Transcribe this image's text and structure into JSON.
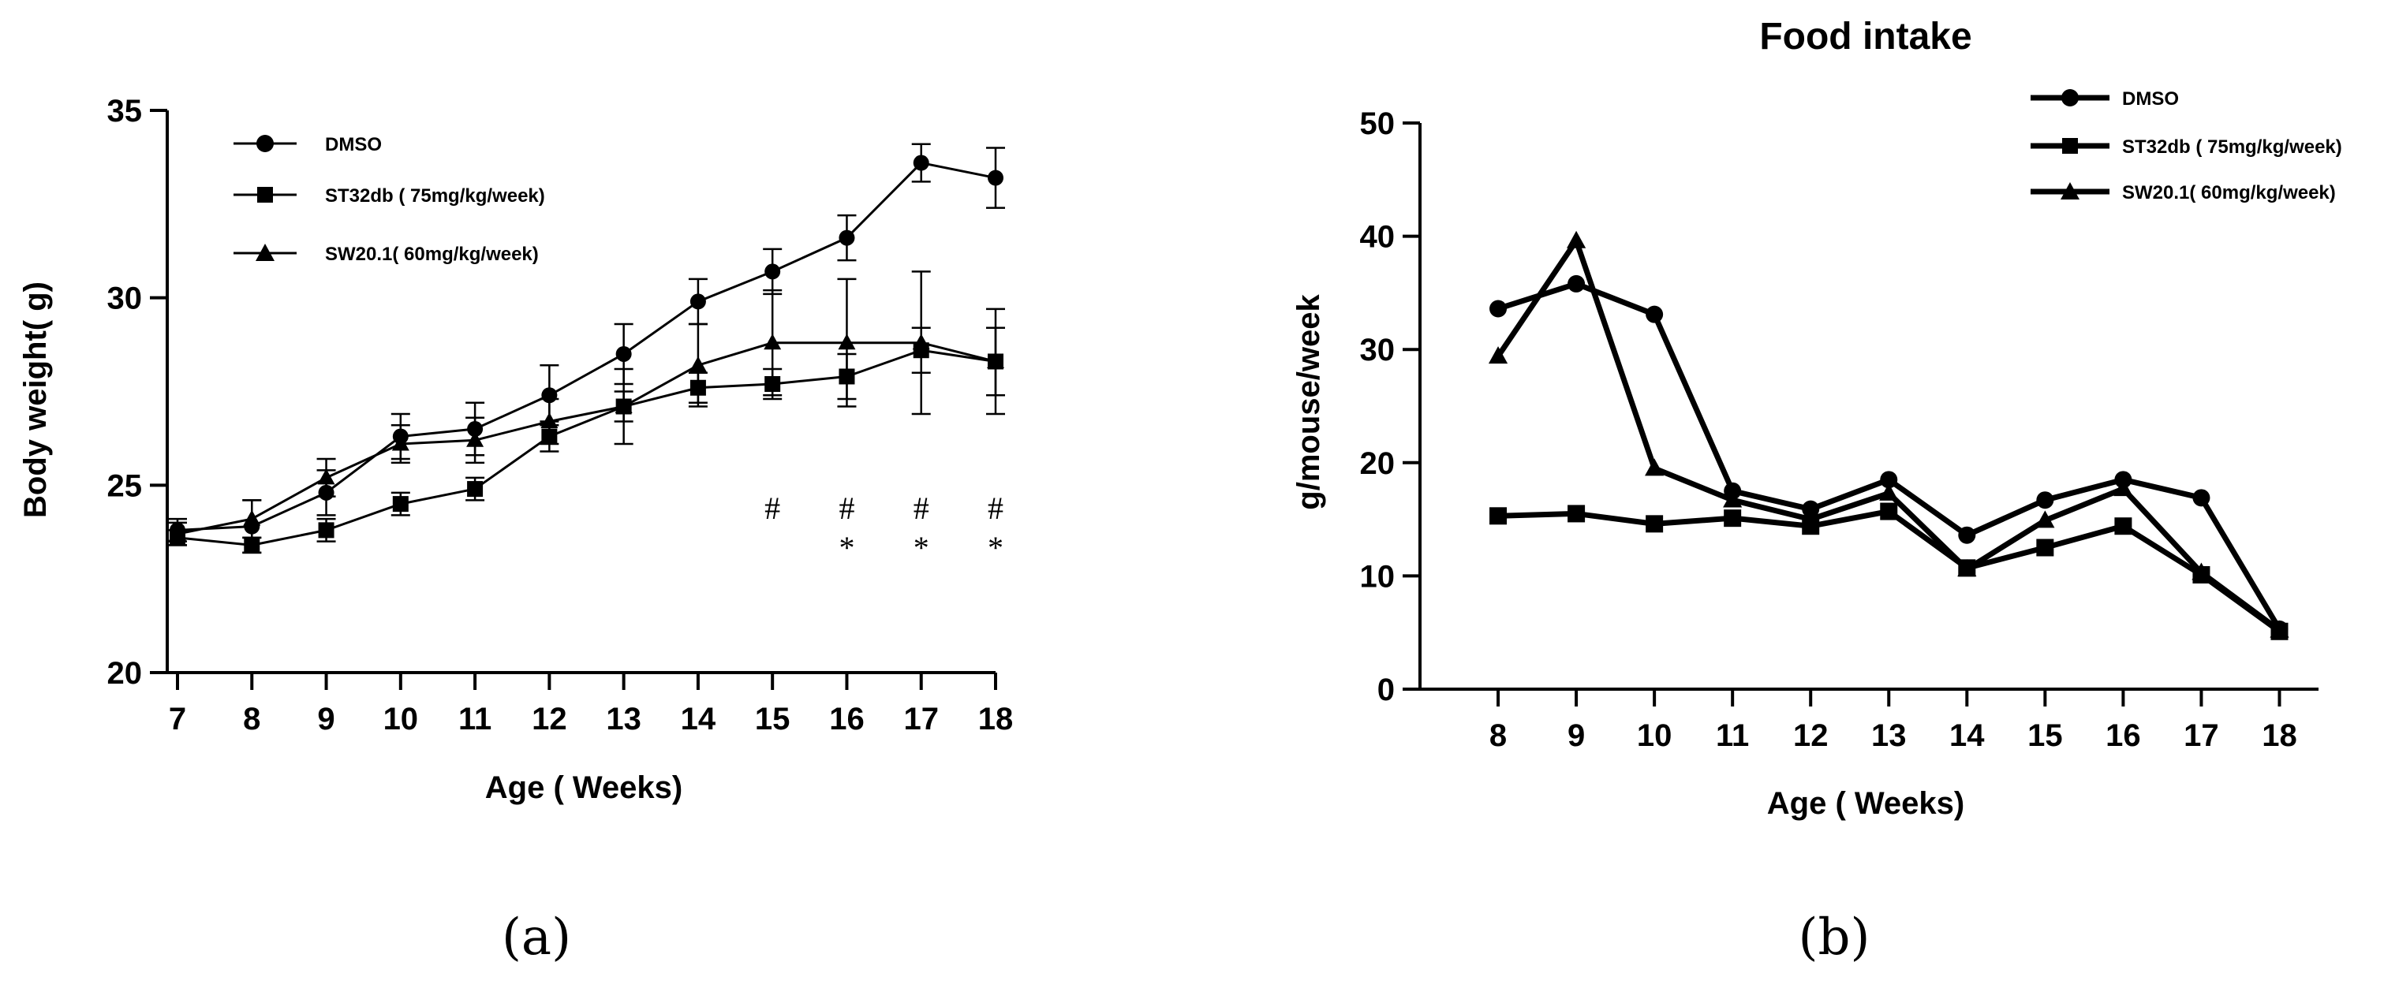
{
  "chart_data": [
    {
      "type": "line",
      "panel_label": "(a)",
      "title": "",
      "xlabel": "Age ( Weeks)",
      "ylabel": "Body weight( g)",
      "x": [
        7,
        8,
        9,
        10,
        11,
        12,
        13,
        14,
        15,
        16,
        17,
        18
      ],
      "xlim": [
        7,
        18
      ],
      "ylim": [
        20,
        35
      ],
      "xticks": [
        "7",
        "8",
        "9",
        "10",
        "11",
        "12",
        "13",
        "14",
        "15",
        "16",
        "17",
        "18"
      ],
      "yticks": [
        20,
        25,
        30,
        35
      ],
      "legend_position": "top-left",
      "series": [
        {
          "name": "DMSO",
          "marker": "circle",
          "values": [
            23.8,
            23.9,
            24.8,
            26.3,
            26.5,
            27.4,
            28.5,
            29.9,
            30.7,
            31.6,
            33.6,
            33.2
          ],
          "errors": [
            0.3,
            0.7,
            0.6,
            0.6,
            0.7,
            0.8,
            0.8,
            0.6,
            0.6,
            0.6,
            0.5,
            0.8
          ]
        },
        {
          "name": "ST32db ( 75mg/kg/week)",
          "marker": "square",
          "values": [
            23.6,
            23.4,
            23.8,
            24.5,
            24.9,
            26.3,
            27.1,
            27.6,
            27.7,
            27.9,
            28.6,
            28.3
          ],
          "errors": [
            0.2,
            0.2,
            0.3,
            0.3,
            0.3,
            0.4,
            0.4,
            0.4,
            0.4,
            0.6,
            0.6,
            0.9
          ]
        },
        {
          "name": "SW20.1( 60mg/kg/week)",
          "marker": "triangle",
          "values": [
            23.7,
            24.1,
            25.2,
            26.1,
            26.2,
            26.7,
            27.1,
            28.2,
            28.8,
            28.8,
            28.8,
            28.3
          ],
          "errors": [
            0.3,
            0.5,
            0.5,
            0.5,
            0.6,
            0.6,
            1.0,
            1.1,
            1.4,
            1.7,
            1.9,
            1.4
          ]
        }
      ],
      "annotations": [
        {
          "x": 15,
          "text": "#"
        },
        {
          "x": 16,
          "text": "#"
        },
        {
          "x": 17,
          "text": "#"
        },
        {
          "x": 18,
          "text": "#"
        },
        {
          "x": 16,
          "text": "*"
        },
        {
          "x": 17,
          "text": "*"
        },
        {
          "x": 18,
          "text": "*"
        }
      ]
    },
    {
      "type": "line",
      "panel_label": "(b)",
      "title": "Food intake",
      "xlabel": "Age ( Weeks)",
      "ylabel": "g/mouse/week",
      "x": [
        8,
        9,
        10,
        11,
        12,
        13,
        14,
        15,
        16,
        17,
        18
      ],
      "xlim": [
        7,
        18.5
      ],
      "ylim": [
        0,
        50
      ],
      "xticks": [
        "8",
        "9",
        "10",
        "11",
        "12",
        "13",
        "14",
        "15",
        "16",
        "17",
        "18"
      ],
      "yticks": [
        0,
        10,
        20,
        30,
        40,
        50
      ],
      "legend_position": "top-right",
      "series": [
        {
          "name": "DMSO",
          "marker": "circle",
          "values": [
            33.6,
            35.8,
            33.1,
            17.5,
            15.9,
            18.5,
            13.6,
            16.7,
            18.5,
            16.9,
            5.3
          ]
        },
        {
          "name": "ST32db ( 75mg/kg/week)",
          "marker": "square",
          "values": [
            15.3,
            15.5,
            14.6,
            15.1,
            14.4,
            15.7,
            10.7,
            12.5,
            14.4,
            10.1,
            5.1
          ]
        },
        {
          "name": "SW20.1( 60mg/kg/week)",
          "marker": "triangle",
          "values": [
            29.4,
            39.6,
            19.5,
            16.7,
            15.0,
            17.3,
            10.6,
            14.9,
            17.7,
            10.3,
            5.2
          ]
        }
      ]
    }
  ]
}
